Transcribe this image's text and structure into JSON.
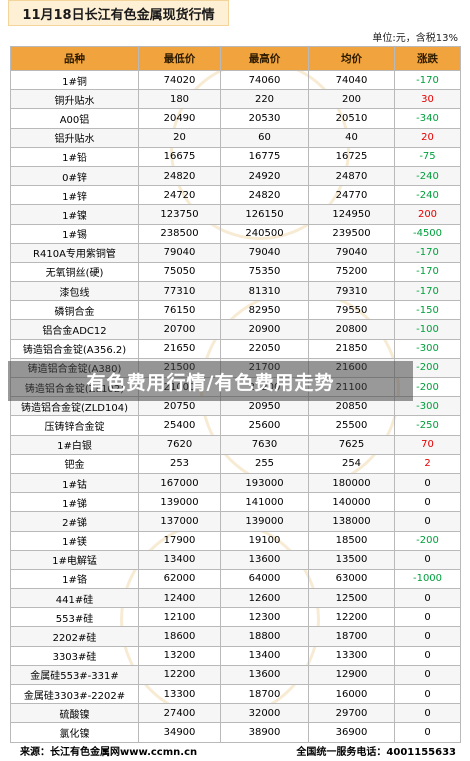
{
  "title": "11月18日长江有色金属现货行情",
  "unit": "单位:元，含税13%",
  "columns": [
    "品种",
    "最低价",
    "最高价",
    "均价",
    "涨跌"
  ],
  "rows": [
    {
      "name": "1#铜",
      "low": "74020",
      "high": "74060",
      "avg": "74040",
      "change": "-170",
      "dir": "down"
    },
    {
      "name": "铜升贴水",
      "low": "180",
      "high": "220",
      "avg": "200",
      "change": "30",
      "dir": "up"
    },
    {
      "name": "A00铝",
      "low": "20490",
      "high": "20530",
      "avg": "20510",
      "change": "-340",
      "dir": "down"
    },
    {
      "name": "铝升贴水",
      "low": "20",
      "high": "60",
      "avg": "40",
      "change": "20",
      "dir": "up"
    },
    {
      "name": "1#铅",
      "low": "16675",
      "high": "16775",
      "avg": "16725",
      "change": "-75",
      "dir": "down"
    },
    {
      "name": "0#锌",
      "low": "24820",
      "high": "24920",
      "avg": "24870",
      "change": "-240",
      "dir": "down"
    },
    {
      "name": "1#锌",
      "low": "24720",
      "high": "24820",
      "avg": "24770",
      "change": "-240",
      "dir": "down"
    },
    {
      "name": "1#镍",
      "low": "123750",
      "high": "126150",
      "avg": "124950",
      "change": "200",
      "dir": "up"
    },
    {
      "name": "1#锡",
      "low": "238500",
      "high": "240500",
      "avg": "239500",
      "change": "-4500",
      "dir": "down"
    },
    {
      "name": "R410A专用紫铜管",
      "low": "79040",
      "high": "79040",
      "avg": "79040",
      "change": "-170",
      "dir": "down"
    },
    {
      "name": "无氧铜丝(硬)",
      "low": "75050",
      "high": "75350",
      "avg": "75200",
      "change": "-170",
      "dir": "down"
    },
    {
      "name": "漆包线",
      "low": "77310",
      "high": "81310",
      "avg": "79310",
      "change": "-170",
      "dir": "down"
    },
    {
      "name": "磷铜合金",
      "low": "76150",
      "high": "82950",
      "avg": "79550",
      "change": "-150",
      "dir": "down"
    },
    {
      "name": "铝合金ADC12",
      "low": "20700",
      "high": "20900",
      "avg": "20800",
      "change": "-100",
      "dir": "down"
    },
    {
      "name": "铸造铝合金锭(A356.2)",
      "low": "21650",
      "high": "22050",
      "avg": "21850",
      "change": "-300",
      "dir": "down"
    },
    {
      "name": "铸造铝合金锭(A380)",
      "low": "21500",
      "high": "21700",
      "avg": "21600",
      "change": "-200",
      "dir": "down"
    },
    {
      "name": "铸造铝合金锭(ZL102)",
      "low": "21000",
      "high": "21200",
      "avg": "21100",
      "change": "-200",
      "dir": "down"
    },
    {
      "name": "铸造铝合金锭(ZLD104)",
      "low": "20750",
      "high": "20950",
      "avg": "20850",
      "change": "-300",
      "dir": "down"
    },
    {
      "name": "压铸锌合金锭",
      "low": "25400",
      "high": "25600",
      "avg": "25500",
      "change": "-250",
      "dir": "down"
    },
    {
      "name": "1#白银",
      "low": "7620",
      "high": "7630",
      "avg": "7625",
      "change": "70",
      "dir": "up"
    },
    {
      "name": "钯金",
      "low": "253",
      "high": "255",
      "avg": "254",
      "change": "2",
      "dir": "up"
    },
    {
      "name": "1#钴",
      "low": "167000",
      "high": "193000",
      "avg": "180000",
      "change": "0",
      "dir": "flat"
    },
    {
      "name": "1#锑",
      "low": "139000",
      "high": "141000",
      "avg": "140000",
      "change": "0",
      "dir": "flat"
    },
    {
      "name": "2#锑",
      "low": "137000",
      "high": "139000",
      "avg": "138000",
      "change": "0",
      "dir": "flat"
    },
    {
      "name": "1#镁",
      "low": "17900",
      "high": "19100",
      "avg": "18500",
      "change": "-200",
      "dir": "down"
    },
    {
      "name": "1#电解锰",
      "low": "13400",
      "high": "13600",
      "avg": "13500",
      "change": "0",
      "dir": "flat"
    },
    {
      "name": "1#铬",
      "low": "62000",
      "high": "64000",
      "avg": "63000",
      "change": "-1000",
      "dir": "down"
    },
    {
      "name": "441#硅",
      "low": "12400",
      "high": "12600",
      "avg": "12500",
      "change": "0",
      "dir": "flat"
    },
    {
      "name": "553#硅",
      "low": "12100",
      "high": "12300",
      "avg": "12200",
      "change": "0",
      "dir": "flat"
    },
    {
      "name": "2202#硅",
      "low": "18600",
      "high": "18800",
      "avg": "18700",
      "change": "0",
      "dir": "flat"
    },
    {
      "name": "3303#硅",
      "low": "13200",
      "high": "13400",
      "avg": "13300",
      "change": "0",
      "dir": "flat"
    },
    {
      "name": "金属硅553#-331#",
      "low": "12200",
      "high": "13600",
      "avg": "12900",
      "change": "0",
      "dir": "flat"
    },
    {
      "name": "金属硅3303#-2202#",
      "low": "13300",
      "high": "18700",
      "avg": "16000",
      "change": "0",
      "dir": "flat"
    },
    {
      "name": "硫酸镍",
      "low": "27400",
      "high": "32000",
      "avg": "29700",
      "change": "0",
      "dir": "flat"
    },
    {
      "name": "氯化镍",
      "low": "34900",
      "high": "38900",
      "avg": "36900",
      "change": "0",
      "dir": "flat"
    }
  ],
  "watermark": "有色费用行情/有色费用走势",
  "footer": {
    "source": "来源：长江有色金属网www.ccmn.cn",
    "hotline": "全国统一服务电话：4001155633"
  },
  "colors": {
    "header_bg": "#f1a43d",
    "up": "#e60000",
    "down": "#009f3c"
  }
}
